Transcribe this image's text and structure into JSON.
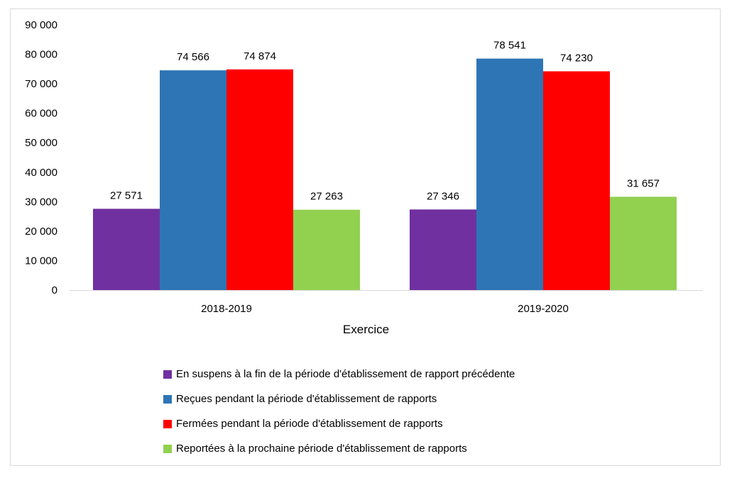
{
  "chart_data": {
    "type": "bar",
    "title": "",
    "xlabel": "Exercice",
    "ylabel": "",
    "ylim": [
      0,
      90000
    ],
    "yticks": [
      "0",
      "10 000",
      "20 000",
      "30 000",
      "40 000",
      "50 000",
      "60 000",
      "70 000",
      "80 000",
      "90 000"
    ],
    "categories": [
      "2018-2019",
      "2019-2020"
    ],
    "series": [
      {
        "name": "En suspens à la fin de la période d'établissement de rapport précédente",
        "color": "#7030a0",
        "values": [
          27571,
          27346
        ],
        "labels": [
          "27 571",
          "27 346"
        ]
      },
      {
        "name": "Reçues pendant la période d'établissement de rapports",
        "color": "#2e75b6",
        "values": [
          74566,
          78541
        ],
        "labels": [
          "74 566",
          "78 541"
        ]
      },
      {
        "name": "Fermées pendant la période d'établissement de rapports",
        "color": "#ff0000",
        "values": [
          74874,
          74230
        ],
        "labels": [
          "74 874",
          "74 230"
        ]
      },
      {
        "name": "Reportées à la prochaine période d'établissement de rapports",
        "color": "#92d050",
        "values": [
          27263,
          31657
        ],
        "labels": [
          "27 263",
          "31 657"
        ]
      }
    ],
    "legend_position": "bottom"
  }
}
